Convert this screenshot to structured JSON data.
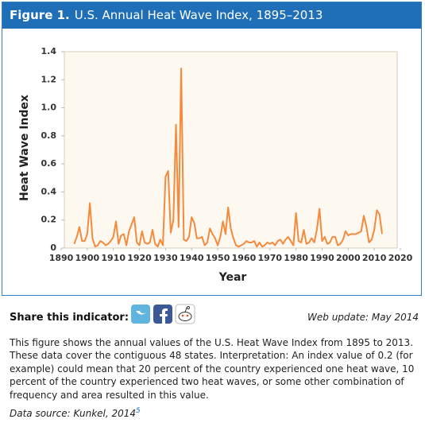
{
  "header": {
    "figure_label": "Figure 1."
  },
  "chart_data": {
    "type": "line",
    "title": "U.S. Annual Heat Wave Index, 1895–2013",
    "x_label": "Year",
    "y_label": "Heat Wave Index",
    "x": [
      1895,
      1896,
      1897,
      1898,
      1899,
      1900,
      1901,
      1902,
      1903,
      1904,
      1905,
      1906,
      1907,
      1908,
      1909,
      1910,
      1911,
      1912,
      1913,
      1914,
      1915,
      1916,
      1917,
      1918,
      1919,
      1920,
      1921,
      1922,
      1923,
      1924,
      1925,
      1926,
      1927,
      1928,
      1929,
      1930,
      1931,
      1932,
      1933,
      1934,
      1935,
      1936,
      1937,
      1938,
      1939,
      1940,
      1941,
      1942,
      1943,
      1944,
      1945,
      1946,
      1947,
      1948,
      1949,
      1950,
      1951,
      1952,
      1953,
      1954,
      1955,
      1956,
      1957,
      1958,
      1959,
      1960,
      1961,
      1962,
      1963,
      1964,
      1965,
      1966,
      1967,
      1968,
      1969,
      1970,
      1971,
      1972,
      1973,
      1974,
      1975,
      1976,
      1977,
      1978,
      1979,
      1980,
      1981,
      1982,
      1983,
      1984,
      1985,
      1986,
      1987,
      1988,
      1989,
      1990,
      1991,
      1992,
      1993,
      1994,
      1995,
      1996,
      1997,
      1998,
      1999,
      2000,
      2001,
      2002,
      2003,
      2004,
      2005,
      2006,
      2007,
      2008,
      2009,
      2010,
      2011,
      2012,
      2013
    ],
    "series": [
      {
        "name": "Heat Wave Index",
        "color": "#f58a3c",
        "values": [
          0.03,
          0.08,
          0.15,
          0.05,
          0.05,
          0.1,
          0.32,
          0.07,
          0.01,
          0.02,
          0.05,
          0.04,
          0.02,
          0.03,
          0.05,
          0.08,
          0.19,
          0.03,
          0.09,
          0.1,
          0.02,
          0.12,
          0.17,
          0.22,
          0.04,
          0.02,
          0.12,
          0.04,
          0.03,
          0.04,
          0.13,
          0.03,
          0.01,
          0.06,
          0.02,
          0.51,
          0.55,
          0.11,
          0.2,
          0.88,
          0.15,
          1.28,
          0.06,
          0.05,
          0.08,
          0.22,
          0.18,
          0.07,
          0.07,
          0.08,
          0.02,
          0.04,
          0.14,
          0.1,
          0.07,
          0.02,
          0.08,
          0.19,
          0.1,
          0.29,
          0.14,
          0.07,
          0.02,
          0.01,
          0.02,
          0.03,
          0.05,
          0.04,
          0.04,
          0.05,
          0.01,
          0.04,
          0.01,
          0.02,
          0.04,
          0.03,
          0.04,
          0.02,
          0.05,
          0.06,
          0.03,
          0.06,
          0.08,
          0.05,
          0.02,
          0.25,
          0.05,
          0.04,
          0.13,
          0.03,
          0.04,
          0.07,
          0.04,
          0.13,
          0.28,
          0.05,
          0.08,
          0.03,
          0.04,
          0.08,
          0.08,
          0.02,
          0.03,
          0.06,
          0.12,
          0.09,
          0.1,
          0.1,
          0.1,
          0.11,
          0.12,
          0.23,
          0.15,
          0.04,
          0.06,
          0.13,
          0.27,
          0.24,
          0.1
        ]
      }
    ],
    "xlim": [
      1890,
      2020
    ],
    "xticks": [
      1890,
      1900,
      1910,
      1920,
      1930,
      1940,
      1950,
      1960,
      1970,
      1980,
      1990,
      2000,
      2010,
      2020
    ],
    "ylim": [
      0,
      1.4
    ],
    "yticks": [
      0,
      0.2,
      0.4,
      0.6,
      0.8,
      {
        "value": 1,
        "label": "1.0"
      },
      1.2,
      1.4
    ],
    "grid": false
  },
  "share": {
    "label": "Share this indicator:"
  },
  "web_update": "Web update: May 2014",
  "description": "This figure shows the annual values of the U.S. Heat Wave Index from 1895 to 2013. These data cover the contiguous 48 states. Interpretation: An index value of 0.2 (for example) could mean that 20 percent of the country experienced one heat wave, 10 percent of the country experienced two heat waves, or some other combination of frequency and area resulted in this value.",
  "data_source": {
    "text": "Data source: Kunkel, 2014",
    "footnote": "5"
  }
}
